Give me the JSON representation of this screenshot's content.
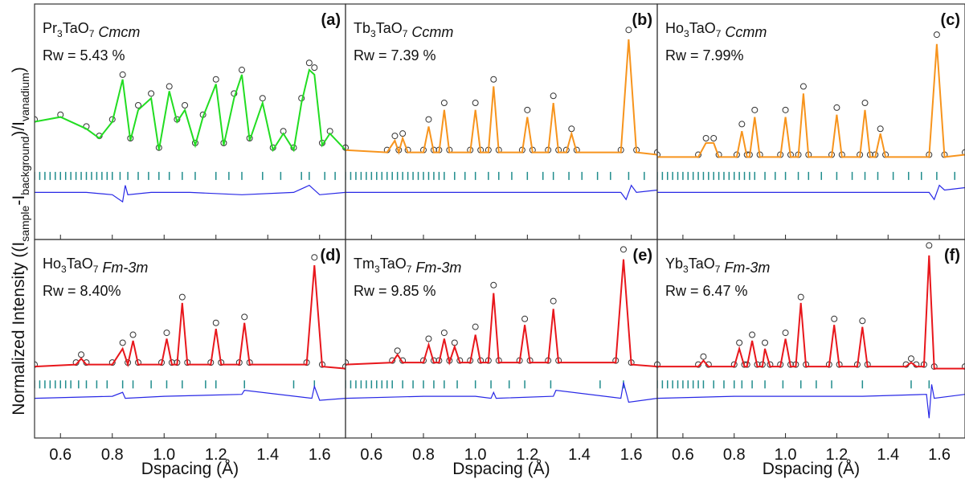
{
  "y_label": [
    "Normalized Intensity ((I",
    "sample",
    "-I",
    "background",
    ")/I",
    "vanadium",
    ")"
  ],
  "chart_data": [
    {
      "type": "line",
      "panel_label": "(a)",
      "formula": [
        "Pr",
        "3",
        "TaO",
        "7"
      ],
      "space_group": "Cmcm",
      "rw": "Rw = 5.43 %",
      "xlim": [
        0.5,
        1.7
      ],
      "ylim": [
        0,
        1
      ],
      "xticks": [
        0.6,
        0.8,
        {
          "value": 1,
          "label": "1.0"
        },
        1.2,
        1.4,
        1.6
      ],
      "x_tick_labels": false,
      "calc_color": "#22dd22",
      "obs_color": "#333333",
      "diff_color": "#2828e6",
      "reflection_color": "#1f8c8c",
      "x": [
        0.5,
        0.6,
        0.7,
        0.75,
        0.8,
        0.84,
        0.87,
        0.9,
        0.95,
        0.98,
        1.02,
        1.05,
        1.08,
        1.12,
        1.15,
        1.2,
        1.23,
        1.27,
        1.3,
        1.33,
        1.38,
        1.42,
        1.46,
        1.5,
        1.53,
        1.56,
        1.58,
        1.61,
        1.64,
        1.7
      ],
      "observed": [
        0.51,
        0.53,
        0.48,
        0.44,
        0.51,
        0.7,
        0.43,
        0.57,
        0.62,
        0.39,
        0.65,
        0.51,
        0.57,
        0.41,
        0.53,
        0.68,
        0.41,
        0.62,
        0.72,
        0.43,
        0.6,
        0.39,
        0.46,
        0.39,
        0.6,
        0.75,
        0.73,
        0.41,
        0.46,
        0.39
      ],
      "calculated": [
        0.5,
        0.52,
        0.47,
        0.43,
        0.5,
        0.68,
        0.42,
        0.55,
        0.6,
        0.38,
        0.63,
        0.5,
        0.55,
        0.4,
        0.52,
        0.66,
        0.4,
        0.6,
        0.7,
        0.42,
        0.58,
        0.38,
        0.45,
        0.38,
        0.58,
        0.72,
        0.7,
        0.4,
        0.45,
        0.38
      ],
      "reflections": [
        0.5,
        0.52,
        0.54,
        0.56,
        0.58,
        0.6,
        0.62,
        0.64,
        0.66,
        0.68,
        0.7,
        0.72,
        0.74,
        0.76,
        0.78,
        0.8,
        0.83,
        0.86,
        0.9,
        0.94,
        0.98,
        1.02,
        1.07,
        1.12,
        1.2,
        1.25,
        1.3,
        1.38,
        1.45,
        1.53,
        1.56,
        1.62,
        1.66
      ],
      "difference_x": [
        0.5,
        0.7,
        0.8,
        0.84,
        0.85,
        0.86,
        0.95,
        1.1,
        1.3,
        1.5,
        1.56,
        1.6,
        1.7
      ],
      "difference": [
        0.2,
        0.2,
        0.19,
        0.16,
        0.23,
        0.19,
        0.2,
        0.2,
        0.19,
        0.2,
        0.23,
        0.19,
        0.2
      ]
    },
    {
      "type": "line",
      "panel_label": "(b)",
      "formula": [
        "Tb",
        "3",
        "TaO",
        "7"
      ],
      "space_group": "Ccmm",
      "rw": "Rw = 7.39 %",
      "xlim": [
        0.5,
        1.7
      ],
      "ylim": [
        0,
        1
      ],
      "xticks": [
        0.6,
        0.8,
        {
          "value": 1,
          "label": "1.0"
        },
        1.2,
        1.4,
        1.6
      ],
      "x_tick_labels": false,
      "calc_color": "#f7941d",
      "obs_color": "#333333",
      "diff_color": "#2828e6",
      "reflection_color": "#1f8c8c",
      "x": [
        0.5,
        0.66,
        0.69,
        0.705,
        0.72,
        0.74,
        0.8,
        0.82,
        0.84,
        0.86,
        0.88,
        0.9,
        0.98,
        1.0,
        1.02,
        1.05,
        1.07,
        1.09,
        1.18,
        1.2,
        1.22,
        1.28,
        1.3,
        1.32,
        1.35,
        1.37,
        1.39,
        1.56,
        1.59,
        1.62,
        1.7
      ],
      "observed": [
        0.39,
        0.38,
        0.44,
        0.38,
        0.45,
        0.38,
        0.38,
        0.51,
        0.38,
        0.38,
        0.58,
        0.38,
        0.38,
        0.58,
        0.38,
        0.38,
        0.68,
        0.38,
        0.38,
        0.55,
        0.38,
        0.38,
        0.61,
        0.38,
        0.38,
        0.47,
        0.38,
        0.38,
        0.89,
        0.38,
        0.37
      ],
      "calculated": [
        0.38,
        0.37,
        0.42,
        0.37,
        0.43,
        0.37,
        0.37,
        0.48,
        0.37,
        0.37,
        0.55,
        0.37,
        0.37,
        0.55,
        0.37,
        0.37,
        0.65,
        0.37,
        0.37,
        0.52,
        0.37,
        0.37,
        0.58,
        0.37,
        0.37,
        0.45,
        0.37,
        0.37,
        0.85,
        0.37,
        0.36
      ],
      "reflections": [
        0.5,
        0.52,
        0.54,
        0.56,
        0.58,
        0.6,
        0.62,
        0.64,
        0.66,
        0.68,
        0.7,
        0.72,
        0.74,
        0.76,
        0.78,
        0.8,
        0.82,
        0.84,
        0.86,
        0.88,
        0.92,
        0.96,
        1.0,
        1.05,
        1.09,
        1.14,
        1.2,
        1.26,
        1.3,
        1.36,
        1.41,
        1.47,
        1.52,
        1.59,
        1.65
      ],
      "difference_x": [
        0.5,
        0.8,
        1.0,
        1.3,
        1.56,
        1.58,
        1.6,
        1.62,
        1.7
      ],
      "difference": [
        0.2,
        0.2,
        0.2,
        0.2,
        0.2,
        0.17,
        0.23,
        0.2,
        0.21
      ]
    },
    {
      "type": "line",
      "panel_label": "(c)",
      "formula": [
        "Ho",
        "3",
        "TaO",
        "7"
      ],
      "space_group": "Ccmm",
      "rw": "Rw = 7.99%",
      "xlim": [
        0.5,
        1.7
      ],
      "ylim": [
        0,
        1
      ],
      "xticks": [
        0.6,
        0.8,
        {
          "value": 1,
          "label": "1.0"
        },
        1.2,
        1.4,
        1.6
      ],
      "x_tick_labels": false,
      "calc_color": "#f7941d",
      "obs_color": "#333333",
      "diff_color": "#2828e6",
      "reflection_color": "#1f8c8c",
      "x": [
        0.5,
        0.66,
        0.69,
        0.72,
        0.74,
        0.81,
        0.83,
        0.85,
        0.86,
        0.88,
        0.9,
        0.98,
        1.0,
        1.02,
        1.05,
        1.07,
        1.09,
        1.18,
        1.2,
        1.22,
        1.29,
        1.31,
        1.33,
        1.35,
        1.37,
        1.39,
        1.56,
        1.59,
        1.62,
        1.7
      ],
      "observed": [
        0.36,
        0.36,
        0.43,
        0.43,
        0.36,
        0.36,
        0.49,
        0.36,
        0.36,
        0.55,
        0.36,
        0.36,
        0.55,
        0.36,
        0.36,
        0.65,
        0.36,
        0.36,
        0.56,
        0.36,
        0.36,
        0.58,
        0.36,
        0.36,
        0.47,
        0.36,
        0.36,
        0.87,
        0.36,
        0.37
      ],
      "calculated": [
        0.35,
        0.35,
        0.41,
        0.41,
        0.35,
        0.35,
        0.46,
        0.35,
        0.35,
        0.52,
        0.35,
        0.35,
        0.52,
        0.35,
        0.35,
        0.62,
        0.35,
        0.35,
        0.53,
        0.35,
        0.35,
        0.55,
        0.35,
        0.35,
        0.45,
        0.35,
        0.35,
        0.83,
        0.35,
        0.36
      ],
      "reflections": [
        0.5,
        0.52,
        0.54,
        0.56,
        0.58,
        0.6,
        0.62,
        0.64,
        0.66,
        0.68,
        0.7,
        0.72,
        0.74,
        0.76,
        0.78,
        0.8,
        0.82,
        0.84,
        0.86,
        0.88,
        0.92,
        0.96,
        1.0,
        1.05,
        1.09,
        1.14,
        1.2,
        1.26,
        1.31,
        1.36,
        1.42,
        1.48,
        1.53,
        1.59,
        1.66
      ],
      "difference_x": [
        0.5,
        0.8,
        1.0,
        1.3,
        1.56,
        1.58,
        1.6,
        1.62,
        1.7
      ],
      "difference": [
        0.2,
        0.2,
        0.2,
        0.2,
        0.2,
        0.17,
        0.23,
        0.21,
        0.22
      ]
    },
    {
      "type": "line",
      "panel_label": "(d)",
      "formula": [
        "Ho",
        "3",
        "TaO",
        "7"
      ],
      "space_group": "Fm-3m",
      "rw": "Rw = 8.40%",
      "xlim": [
        0.5,
        1.7
      ],
      "ylim": [
        0,
        1
      ],
      "xticks": [
        0.6,
        0.8,
        {
          "value": 1,
          "label": "1.0"
        },
        1.2,
        1.4,
        1.6
      ],
      "x_tick_labels": true,
      "x_label": "Dspacing (Å)",
      "calc_color": "#e8171c",
      "obs_color": "#333333",
      "diff_color": "#2828e6",
      "reflection_color": "#1f8c8c",
      "x": [
        0.5,
        0.66,
        0.68,
        0.7,
        0.8,
        0.84,
        0.86,
        0.88,
        0.9,
        0.99,
        1.01,
        1.03,
        1.05,
        1.07,
        1.09,
        1.18,
        1.2,
        1.22,
        1.29,
        1.31,
        1.33,
        1.55,
        1.58,
        1.61,
        1.7
      ],
      "observed": [
        0.37,
        0.38,
        0.42,
        0.38,
        0.38,
        0.48,
        0.38,
        0.52,
        0.38,
        0.38,
        0.53,
        0.38,
        0.38,
        0.71,
        0.38,
        0.38,
        0.58,
        0.38,
        0.38,
        0.61,
        0.38,
        0.38,
        0.91,
        0.37,
        0.36
      ],
      "calculated": [
        0.36,
        0.37,
        0.4,
        0.37,
        0.37,
        0.45,
        0.37,
        0.49,
        0.37,
        0.37,
        0.5,
        0.37,
        0.37,
        0.68,
        0.37,
        0.37,
        0.55,
        0.37,
        0.37,
        0.58,
        0.37,
        0.37,
        0.87,
        0.36,
        0.35
      ],
      "reflections": [
        0.5,
        0.52,
        0.54,
        0.56,
        0.58,
        0.6,
        0.62,
        0.64,
        0.67,
        0.7,
        0.74,
        0.78,
        0.84,
        0.88,
        0.95,
        1.01,
        1.07,
        1.16,
        1.2,
        1.31,
        1.5,
        1.58
      ],
      "difference_x": [
        0.5,
        0.8,
        0.84,
        0.85,
        1.0,
        1.3,
        1.31,
        1.57,
        1.58,
        1.6,
        1.7
      ],
      "difference": [
        0.2,
        0.21,
        0.23,
        0.2,
        0.21,
        0.22,
        0.24,
        0.2,
        0.26,
        0.19,
        0.2
      ]
    },
    {
      "type": "line",
      "panel_label": "(e)",
      "formula": [
        "Tm",
        "3",
        "TaO",
        "7"
      ],
      "space_group": "Fm-3m",
      "rw": "Rw = 9.85 %",
      "xlim": [
        0.5,
        1.7
      ],
      "ylim": [
        0,
        1
      ],
      "xticks": [
        0.6,
        0.8,
        {
          "value": 1,
          "label": "1.0"
        },
        1.2,
        1.4,
        1.6
      ],
      "x_tick_labels": true,
      "x_label": "Dspacing (Å)",
      "calc_color": "#e8171c",
      "obs_color": "#333333",
      "diff_color": "#2828e6",
      "reflection_color": "#1f8c8c",
      "x": [
        0.5,
        0.68,
        0.7,
        0.72,
        0.8,
        0.82,
        0.84,
        0.86,
        0.88,
        0.9,
        0.92,
        0.94,
        0.98,
        1.0,
        1.02,
        1.05,
        1.07,
        1.09,
        1.17,
        1.19,
        1.21,
        1.28,
        1.3,
        1.32,
        1.54,
        1.57,
        1.6,
        1.7
      ],
      "observed": [
        0.38,
        0.39,
        0.44,
        0.39,
        0.39,
        0.5,
        0.39,
        0.39,
        0.53,
        0.39,
        0.48,
        0.39,
        0.39,
        0.56,
        0.39,
        0.39,
        0.77,
        0.39,
        0.39,
        0.6,
        0.39,
        0.39,
        0.69,
        0.39,
        0.39,
        0.95,
        0.38,
        0.37
      ],
      "calculated": [
        0.37,
        0.38,
        0.42,
        0.38,
        0.38,
        0.47,
        0.38,
        0.38,
        0.5,
        0.38,
        0.46,
        0.38,
        0.38,
        0.52,
        0.38,
        0.38,
        0.73,
        0.38,
        0.38,
        0.57,
        0.38,
        0.38,
        0.65,
        0.38,
        0.38,
        0.9,
        0.37,
        0.36
      ],
      "reflections": [
        0.5,
        0.52,
        0.54,
        0.56,
        0.58,
        0.6,
        0.62,
        0.64,
        0.66,
        0.68,
        0.72,
        0.76,
        0.8,
        0.84,
        0.88,
        0.93,
        1.0,
        1.06,
        1.13,
        1.19,
        1.29,
        1.48,
        1.57
      ],
      "difference_x": [
        0.5,
        0.8,
        1.0,
        1.06,
        1.07,
        1.08,
        1.3,
        1.31,
        1.56,
        1.57,
        1.59,
        1.7
      ],
      "difference": [
        0.2,
        0.21,
        0.21,
        0.2,
        0.23,
        0.2,
        0.21,
        0.24,
        0.2,
        0.28,
        0.18,
        0.2
      ]
    },
    {
      "type": "line",
      "panel_label": "(f)",
      "formula": [
        "Yb",
        "3",
        "TaO",
        "7"
      ],
      "space_group": "Fm-3m",
      "rw": "Rw = 6.47 %",
      "xlim": [
        0.5,
        1.7
      ],
      "ylim": [
        0,
        1
      ],
      "xticks": [
        0.6,
        0.8,
        {
          "value": 1,
          "label": "1.0"
        },
        1.2,
        1.4,
        1.6
      ],
      "x_tick_labels": true,
      "x_label": "Dspacing (Å)",
      "calc_color": "#e8171c",
      "obs_color": "#333333",
      "diff_color": "#2828e6",
      "reflection_color": "#1f8c8c",
      "x": [
        0.5,
        0.66,
        0.68,
        0.7,
        0.8,
        0.82,
        0.84,
        0.85,
        0.87,
        0.89,
        0.91,
        0.92,
        0.94,
        0.98,
        1.0,
        1.02,
        1.04,
        1.06,
        1.08,
        1.17,
        1.19,
        1.21,
        1.28,
        1.3,
        1.32,
        1.47,
        1.49,
        1.51,
        1.54,
        1.56,
        1.58,
        1.7
      ],
      "observed": [
        0.37,
        0.37,
        0.41,
        0.37,
        0.37,
        0.48,
        0.37,
        0.37,
        0.52,
        0.37,
        0.37,
        0.48,
        0.37,
        0.37,
        0.53,
        0.37,
        0.37,
        0.71,
        0.37,
        0.37,
        0.6,
        0.37,
        0.37,
        0.59,
        0.37,
        0.37,
        0.4,
        0.37,
        0.37,
        0.97,
        0.36,
        0.36
      ],
      "calculated": [
        0.36,
        0.36,
        0.39,
        0.36,
        0.36,
        0.45,
        0.36,
        0.36,
        0.49,
        0.36,
        0.36,
        0.45,
        0.36,
        0.36,
        0.5,
        0.36,
        0.36,
        0.68,
        0.36,
        0.36,
        0.57,
        0.36,
        0.36,
        0.56,
        0.36,
        0.36,
        0.38,
        0.36,
        0.36,
        0.92,
        0.35,
        0.35
      ],
      "reflections": [
        0.5,
        0.52,
        0.54,
        0.56,
        0.58,
        0.6,
        0.62,
        0.64,
        0.66,
        0.68,
        0.72,
        0.76,
        0.8,
        0.83,
        0.87,
        0.92,
        0.99,
        1.06,
        1.12,
        1.18,
        1.3,
        1.49,
        1.56
      ],
      "difference_x": [
        0.5,
        0.8,
        1.0,
        1.3,
        1.55,
        1.56,
        1.57,
        1.58,
        1.7
      ],
      "difference": [
        0.2,
        0.21,
        0.21,
        0.21,
        0.22,
        0.1,
        0.27,
        0.2,
        0.22
      ]
    }
  ]
}
